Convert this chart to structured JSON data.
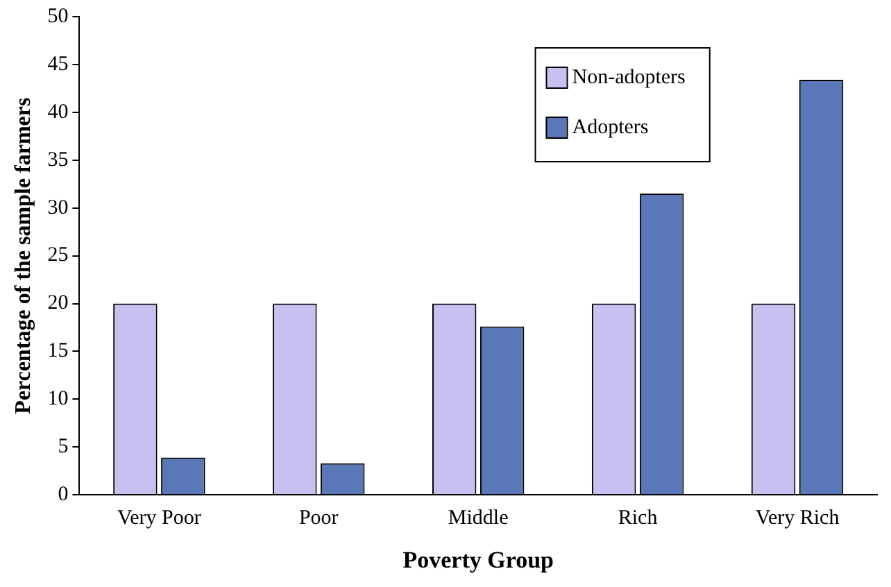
{
  "chart_data": {
    "type": "bar",
    "xlabel": "Poverty Group",
    "ylabel": "Percentage of the sample farmers",
    "categories": [
      "Very Poor",
      "Poor",
      "Middle",
      "Rich",
      "Very Rich"
    ],
    "series": [
      {
        "name": "Non-adopters",
        "color": "#c8c0f0",
        "values": [
          20,
          20,
          20,
          20,
          20
        ]
      },
      {
        "name": "Adopters",
        "color": "#5a78b8",
        "values": [
          3.9,
          3.3,
          17.6,
          31.5,
          43.4
        ]
      }
    ],
    "ylim": [
      0,
      50
    ],
    "yticks": [
      0,
      5,
      10,
      15,
      20,
      25,
      30,
      35,
      40,
      45,
      50
    ],
    "grid": false,
    "legend": "top right"
  }
}
